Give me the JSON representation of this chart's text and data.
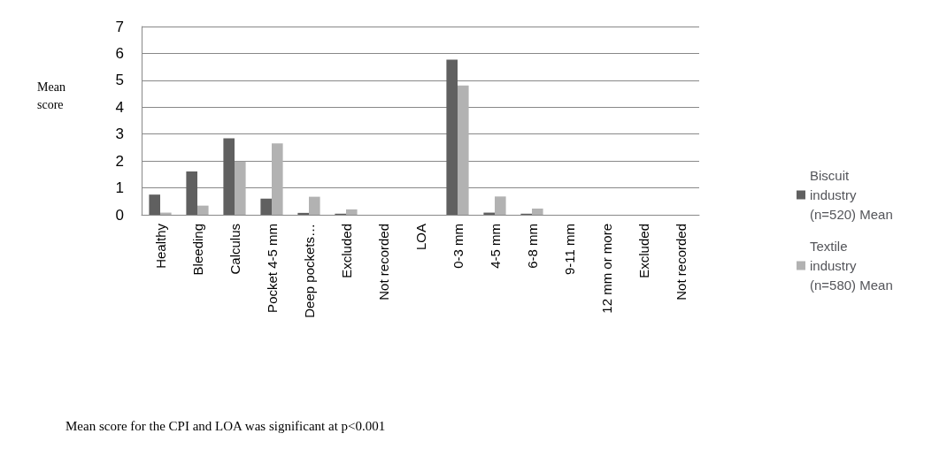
{
  "chart_data": {
    "type": "bar",
    "ylabel": "Mean score",
    "categories": [
      "Healthy",
      "Bleeding",
      "Calculus",
      "Pocket 4-5 mm",
      "Deep pockets…",
      "Excluded",
      "Not recorded",
      "LOA",
      "0-3 mm",
      "4-5 mm",
      "6-8 mm",
      "9-11 mm",
      "12 mm or more",
      "Excluded",
      "Not recorded"
    ],
    "series": [
      {
        "name": "Biscuit industry (n=520) Mean",
        "color": "#606060",
        "values": [
          0.75,
          1.61,
          2.84,
          0.6,
          0.07,
          0.04,
          0,
          0,
          5.77,
          0.08,
          0.04,
          0,
          0,
          0,
          0
        ]
      },
      {
        "name": "Textile industry (n=580) Mean",
        "color": "#b2b2b2",
        "values": [
          0.08,
          0.34,
          1.98,
          2.65,
          0.67,
          0.2,
          0,
          0,
          4.81,
          0.68,
          0.23,
          0,
          0,
          0,
          0
        ]
      }
    ],
    "ylim": [
      0,
      7
    ],
    "yticks": [
      0,
      1,
      2,
      3,
      4,
      5,
      6,
      7
    ],
    "grid": "y",
    "legend": "right",
    "annotations": [
      "Mean score for the CPI and LOA was significant at p<0.001"
    ]
  }
}
